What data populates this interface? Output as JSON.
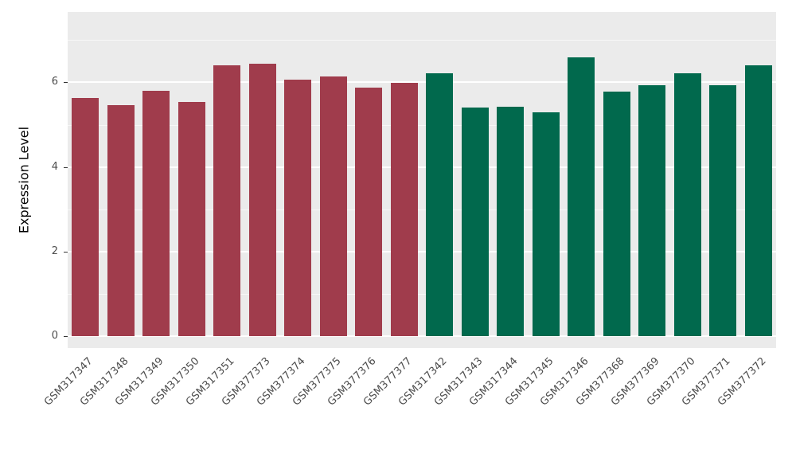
{
  "chart_data": {
    "type": "bar",
    "title": "",
    "xlabel": "",
    "ylabel": "Expression Level",
    "ylim": [
      0,
      7.7
    ],
    "yticks": [
      0,
      2,
      4,
      6
    ],
    "grid": "on",
    "legend": "none",
    "panel_background": "#EBEBEB",
    "gridline_color": "#FFFFFF",
    "bars": [
      {
        "label": "GSM317347",
        "value": 5.63,
        "color": "#A03C4C"
      },
      {
        "label": "GSM317348",
        "value": 5.46,
        "color": "#A03C4C"
      },
      {
        "label": "GSM317349",
        "value": 5.8,
        "color": "#A03C4C"
      },
      {
        "label": "GSM317350",
        "value": 5.54,
        "color": "#A03C4C"
      },
      {
        "label": "GSM317351",
        "value": 6.4,
        "color": "#A03C4C"
      },
      {
        "label": "GSM377373",
        "value": 6.45,
        "color": "#A03C4C"
      },
      {
        "label": "GSM377374",
        "value": 6.06,
        "color": "#A03C4C"
      },
      {
        "label": "GSM377375",
        "value": 6.14,
        "color": "#A03C4C"
      },
      {
        "label": "GSM377376",
        "value": 5.88,
        "color": "#A03C4C"
      },
      {
        "label": "GSM377377",
        "value": 5.98,
        "color": "#A03C4C"
      },
      {
        "label": "GSM317342",
        "value": 6.21,
        "color": "#01694D"
      },
      {
        "label": "GSM317343",
        "value": 5.4,
        "color": "#01694D"
      },
      {
        "label": "GSM317344",
        "value": 5.42,
        "color": "#01694D"
      },
      {
        "label": "GSM317345",
        "value": 5.29,
        "color": "#01694D"
      },
      {
        "label": "GSM317346",
        "value": 6.59,
        "color": "#01694D"
      },
      {
        "label": "GSM377368",
        "value": 5.79,
        "color": "#01694D"
      },
      {
        "label": "GSM377369",
        "value": 5.94,
        "color": "#01694D"
      },
      {
        "label": "GSM377370",
        "value": 6.21,
        "color": "#01694D"
      },
      {
        "label": "GSM377371",
        "value": 5.94,
        "color": "#01694D"
      },
      {
        "label": "GSM377372",
        "value": 6.4,
        "color": "#01694D"
      }
    ]
  }
}
